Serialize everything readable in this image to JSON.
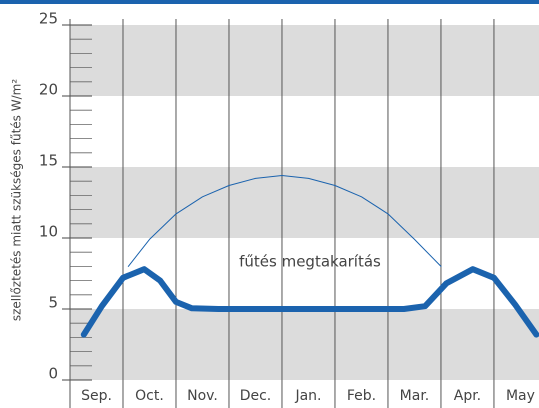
{
  "chart_data": {
    "type": "line",
    "y_label": "szellőztetés miatt szükséges fűtés W/m²",
    "annotation": "fűtés megtakarítás",
    "categories": [
      "Sep.",
      "Oct.",
      "Nov.",
      "Dec.",
      "Jan.",
      "Feb.",
      "Mar.",
      "Apr.",
      "May"
    ],
    "xlim": [
      0,
      8.85
    ],
    "ylim": [
      0,
      25
    ],
    "yticks": [
      0,
      5,
      10,
      15,
      20,
      25
    ],
    "minor_yticks": [
      0,
      1,
      2,
      3,
      4,
      5,
      6,
      7,
      8,
      9,
      10,
      11,
      12,
      13,
      14,
      15,
      16,
      17,
      18,
      19,
      20,
      21,
      22,
      23,
      24,
      25
    ],
    "bands": "alternate",
    "series": [
      {
        "color": "#1b63ae",
        "width": 1,
        "x": [
          1.1,
          1.5,
          2,
          2.5,
          3,
          3.5,
          4,
          4.5,
          5,
          5.5,
          6,
          6.5,
          7
        ],
        "values": [
          8,
          9.9,
          11.7,
          12.9,
          13.7,
          14.2,
          14.4,
          14.2,
          13.7,
          12.9,
          11.7,
          9.9,
          8
        ]
      },
      {
        "color": "#1b63ae",
        "width": 6,
        "x": [
          0.26,
          0.6,
          1.0,
          1.4,
          1.7,
          2.0,
          2.3,
          2.8,
          6.3,
          6.7,
          7.1,
          7.6,
          8.0,
          8.4,
          8.8
        ],
        "values": [
          3.2,
          5.2,
          7.2,
          7.8,
          7.0,
          5.5,
          5.05,
          5,
          5,
          5.2,
          6.8,
          7.8,
          7.2,
          5.3,
          3.2
        ]
      }
    ]
  }
}
